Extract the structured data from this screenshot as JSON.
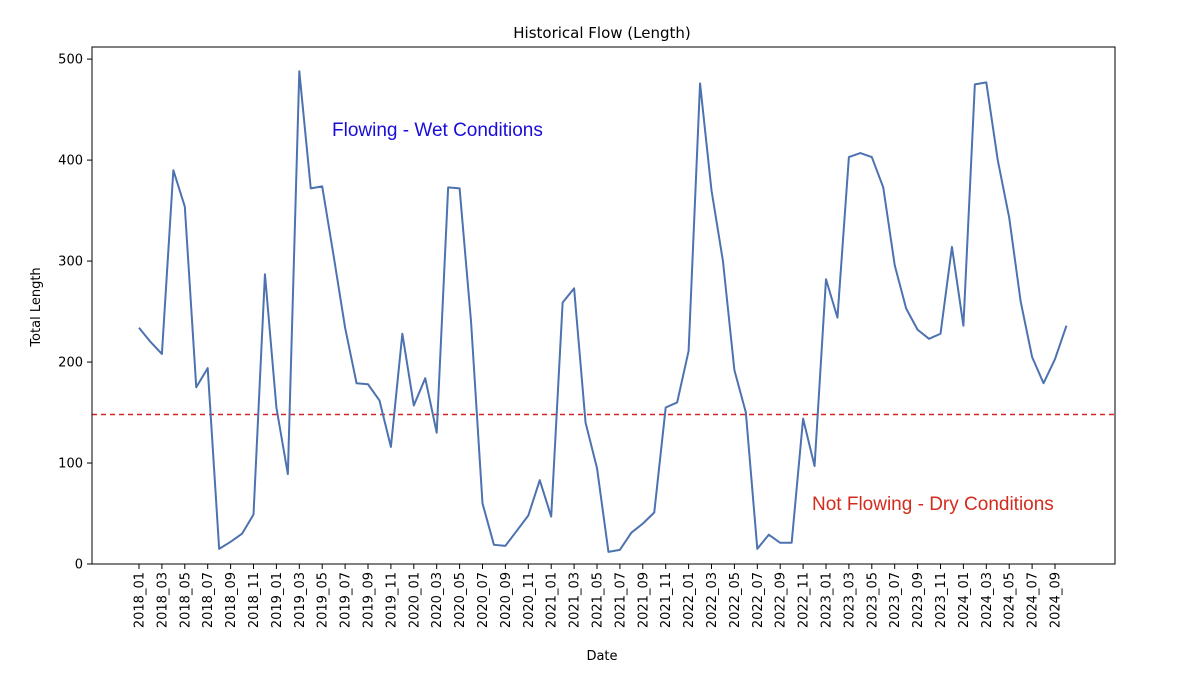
{
  "chart_data": {
    "type": "line",
    "title": "Historical Flow (Length)",
    "xlabel": "Date",
    "ylabel": "Total Length",
    "ylim": [
      0,
      512
    ],
    "yticks": [
      0,
      100,
      200,
      300,
      400,
      500
    ],
    "grid": false,
    "legend": "none",
    "x_tick_labels": [
      "2018_01",
      "2018_03",
      "2018_05",
      "2018_07",
      "2018_09",
      "2018_11",
      "2019_01",
      "2019_03",
      "2019_05",
      "2019_07",
      "2019_09",
      "2019_11",
      "2020_01",
      "2020_03",
      "2020_05",
      "2020_07",
      "2020_09",
      "2020_11",
      "2021_01",
      "2021_03",
      "2021_05",
      "2021_07",
      "2021_09",
      "2021_11",
      "2022_01",
      "2022_03",
      "2022_05",
      "2022_07",
      "2022_09",
      "2022_11",
      "2023_01",
      "2023_03",
      "2023_05",
      "2023_07",
      "2023_09",
      "2023_11",
      "2024_01",
      "2024_03",
      "2024_05",
      "2024_07",
      "2024_09"
    ],
    "series": [
      {
        "color": "#4c72b0",
        "x": [
          "2018_01",
          "2018_02",
          "2018_03",
          "2018_04",
          "2018_05",
          "2018_06",
          "2018_07",
          "2018_08",
          "2018_09",
          "2018_10",
          "2018_11",
          "2018_12",
          "2019_01",
          "2019_02",
          "2019_03",
          "2019_04",
          "2019_05",
          "2019_06",
          "2019_07",
          "2019_08",
          "2019_09",
          "2019_10",
          "2019_11",
          "2019_12",
          "2020_01",
          "2020_02",
          "2020_03",
          "2020_04",
          "2020_05",
          "2020_06",
          "2020_07",
          "2020_08",
          "2020_09",
          "2020_10",
          "2020_11",
          "2020_12",
          "2021_01",
          "2021_02",
          "2021_03",
          "2021_04",
          "2021_05",
          "2021_06",
          "2021_07",
          "2021_08",
          "2021_09",
          "2021_10",
          "2021_11",
          "2021_12",
          "2022_01",
          "2022_02",
          "2022_03",
          "2022_04",
          "2022_05",
          "2022_06",
          "2022_07",
          "2022_08",
          "2022_09",
          "2022_10",
          "2022_11",
          "2022_12",
          "2023_01",
          "2023_02",
          "2023_03",
          "2023_04",
          "2023_05",
          "2023_06",
          "2023_07",
          "2023_08",
          "2023_09",
          "2023_10",
          "2023_11",
          "2023_12",
          "2024_01",
          "2024_02",
          "2024_03",
          "2024_04",
          "2024_05",
          "2024_06",
          "2024_07",
          "2024_08",
          "2024_09",
          "2024_10"
        ],
        "values": [
          234,
          220,
          208,
          390,
          354,
          175,
          194,
          15,
          22,
          30,
          49,
          287,
          155,
          89,
          488,
          372,
          374,
          305,
          234,
          179,
          178,
          162,
          116,
          228,
          157,
          184,
          130,
          373,
          372,
          240,
          60,
          19,
          18,
          33,
          48,
          83,
          47,
          259,
          273,
          140,
          95,
          12,
          14,
          31,
          40,
          51,
          155,
          160,
          211,
          476,
          370,
          300,
          192,
          150,
          15,
          29,
          21,
          21,
          144,
          97,
          282,
          244,
          403,
          407,
          403,
          373,
          296,
          253,
          232,
          223,
          228,
          314,
          236,
          475,
          477,
          400,
          343,
          260,
          205,
          179,
          203,
          236
        ]
      }
    ],
    "threshold": {
      "value": 148,
      "color": "#d62728",
      "style": "dashed"
    },
    "annotations": [
      {
        "text": "Flowing - Wet Conditions",
        "color": "#1a0dd9"
      },
      {
        "text": "Not Flowing - Dry Conditions",
        "color": "#d42b1e"
      }
    ]
  }
}
